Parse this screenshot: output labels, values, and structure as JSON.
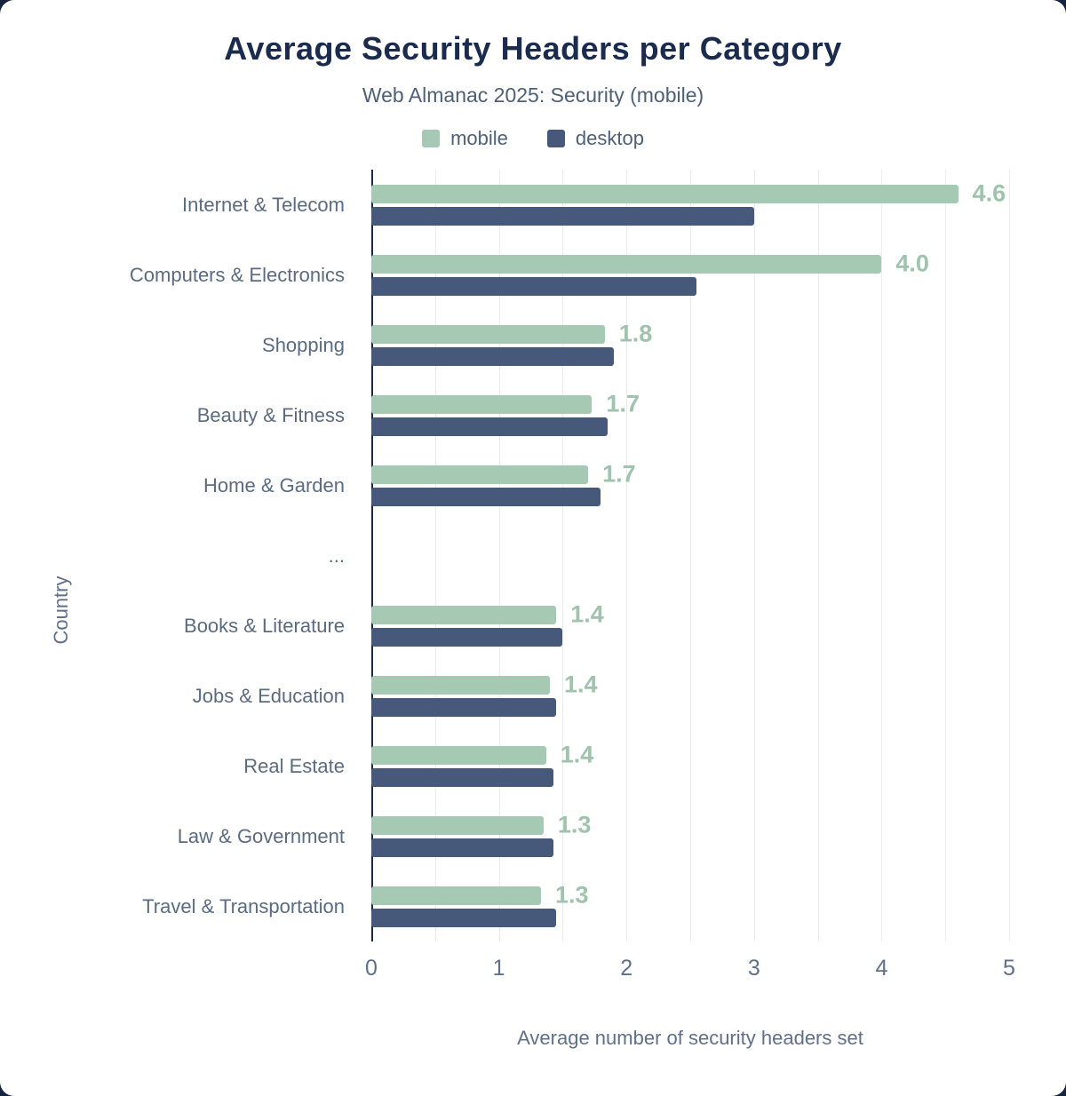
{
  "header": {
    "title": "Average Security Headers per Category",
    "subtitle": "Web Almanac 2025: Security (mobile)"
  },
  "chart_data": {
    "type": "bar",
    "orientation": "horizontal",
    "title": "Average Security Headers per Category",
    "subtitle": "Web Almanac 2025: Security (mobile)",
    "xlabel": "Average number of security headers set",
    "ylabel": "Country",
    "xlim": [
      0,
      5
    ],
    "xticks": [
      0,
      1,
      2,
      3,
      4,
      5
    ],
    "grid_step": 0.5,
    "legend_position": "top",
    "categories": [
      "Internet & Telecom",
      "Computers & Electronics",
      "Shopping",
      "Beauty & Fitness",
      "Home & Garden",
      "...",
      "Books & Literature",
      "Jobs & Education",
      "Real Estate",
      "Law & Government",
      "Travel & Transportation"
    ],
    "series": [
      {
        "name": "mobile",
        "color": "#a5c9b3",
        "values": [
          4.6,
          4.0,
          1.83,
          1.73,
          1.7,
          null,
          1.45,
          1.4,
          1.37,
          1.35,
          1.33
        ],
        "data_labels": [
          "4.6",
          "4.0",
          "1.8",
          "1.7",
          "1.7",
          null,
          "1.4",
          "1.4",
          "1.4",
          "1.3",
          "1.3"
        ]
      },
      {
        "name": "desktop",
        "color": "#47597a",
        "values": [
          3.0,
          2.55,
          1.9,
          1.85,
          1.8,
          null,
          1.5,
          1.45,
          1.43,
          1.43,
          1.45
        ],
        "data_labels": [
          null,
          null,
          null,
          null,
          null,
          null,
          null,
          null,
          null,
          null,
          null
        ]
      }
    ],
    "data_label_color": "#9fc3ad"
  }
}
